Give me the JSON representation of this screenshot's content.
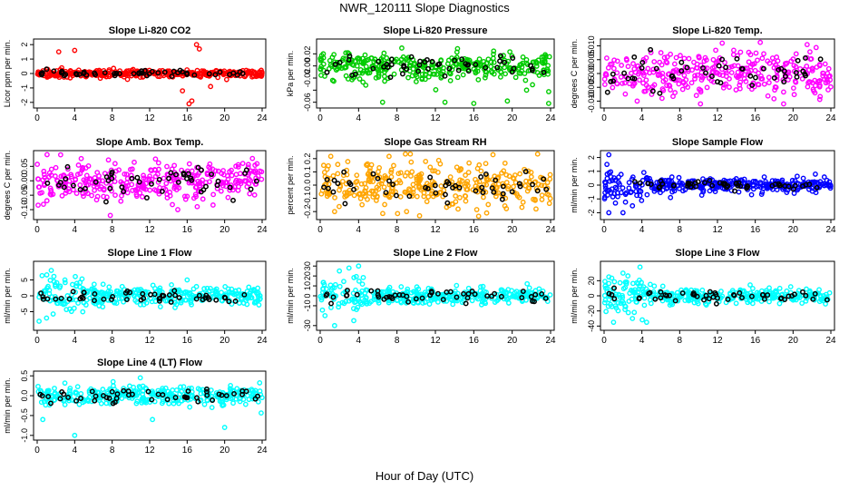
{
  "page": {
    "title": "NWR_120111  Slope Diagnostics",
    "xlabel": "Hour of Day (UTC)"
  },
  "chart_data": [
    {
      "type": "scatter",
      "title": "Slope Li-820 CO2",
      "ylabel": "Licor ppm per min.",
      "xlim": [
        0,
        24
      ],
      "ylim": [
        -2.2,
        2.2
      ],
      "yticks": [
        -2,
        -1,
        0,
        1,
        2
      ],
      "yticklabels": [
        "-2",
        "-1",
        "0",
        "1",
        "2"
      ],
      "xticks": [
        0,
        4,
        8,
        12,
        16,
        20,
        24
      ],
      "color": "#ff0000",
      "spread": 0.12,
      "outliers": [
        [
          2.3,
          1.5
        ],
        [
          4.0,
          1.6
        ],
        [
          16.5,
          -1.9
        ],
        [
          17.0,
          2.0
        ],
        [
          17.3,
          1.7
        ],
        [
          15.5,
          -1.2
        ],
        [
          16.2,
          -2.1
        ],
        [
          18.5,
          -0.9
        ]
      ],
      "bias_points": [
        [
          1.0,
          0.3
        ],
        [
          5.0,
          0.1
        ],
        [
          11.5,
          0.2
        ],
        [
          19.5,
          0.1
        ]
      ]
    },
    {
      "type": "scatter",
      "title": "Slope Li-820 Pressure",
      "ylabel": "kPa per min.",
      "xlim": [
        0,
        24
      ],
      "ylim": [
        -0.065,
        0.04
      ],
      "yticks": [
        -0.06,
        -0.04,
        -0.02,
        0.0,
        0.02
      ],
      "yticklabels": [
        "-0.06",
        "",
        "-0.02",
        "0.00",
        "0.02"
      ],
      "xticks": [
        0,
        4,
        8,
        12,
        16,
        20,
        24
      ],
      "color": "#00cc00",
      "spread": 0.012,
      "outliers": [
        [
          6.5,
          -0.06
        ],
        [
          13.0,
          -0.06
        ],
        [
          16.0,
          -0.062
        ],
        [
          23.8,
          -0.062
        ],
        [
          19.5,
          -0.058
        ],
        [
          21.5,
          -0.04
        ]
      ],
      "bias_points": [
        [
          3.0,
          0.01
        ],
        [
          9.0,
          -0.005
        ],
        [
          20.0,
          -0.01
        ]
      ]
    },
    {
      "type": "scatter",
      "title": "Slope Li-820 Temp.",
      "ylabel": "degrees C per min.",
      "xlim": [
        0,
        24
      ],
      "ylim": [
        -0.0115,
        0.0115
      ],
      "yticks": [
        -0.01,
        -0.005,
        0.0,
        0.005,
        0.01
      ],
      "yticklabels": [
        "-0.010",
        "-0.005",
        "0.000",
        "0.005",
        "0.010"
      ],
      "xticks": [
        0,
        4,
        8,
        12,
        16,
        20,
        24
      ],
      "color": "#ff00ff",
      "spread": 0.004,
      "outliers": [
        [
          12.5,
          0.011
        ],
        [
          10.2,
          -0.011
        ],
        [
          19.0,
          -0.011
        ],
        [
          3.5,
          -0.01
        ]
      ],
      "bias_points": [
        [
          4.0,
          0.002
        ],
        [
          12.0,
          -0.003
        ]
      ]
    },
    {
      "type": "scatter",
      "title": "Slope Amb. Box Temp.",
      "ylabel": "degrees C per min.",
      "xlim": [
        0,
        24
      ],
      "ylim": [
        -0.125,
        0.095
      ],
      "yticks": [
        -0.1,
        -0.05,
        0.0,
        0.05
      ],
      "yticklabels": [
        "-0.10",
        "-0.05",
        "0.00",
        "0.05"
      ],
      "xticks": [
        0,
        4,
        8,
        12,
        16,
        20,
        24
      ],
      "color": "#ff00ff",
      "spread": 0.035,
      "outliers": [
        [
          2.5,
          0.09
        ],
        [
          7.8,
          -0.12
        ],
        [
          15.0,
          -0.1
        ]
      ],
      "bias_points": [
        [
          8.0,
          0.03
        ],
        [
          18.0,
          -0.02
        ]
      ]
    },
    {
      "type": "scatter",
      "title": "Slope Gas Stream RH",
      "ylabel": "percent per min.",
      "xlim": [
        0,
        24
      ],
      "ylim": [
        -0.24,
        0.24
      ],
      "yticks": [
        -0.2,
        -0.1,
        0.0,
        0.1,
        0.2
      ],
      "yticklabels": [
        "-0.2",
        "-0.1",
        "0.0",
        "0.1",
        "0.2"
      ],
      "xticks": [
        0,
        4,
        8,
        12,
        16,
        20,
        24
      ],
      "color": "#ffa500",
      "spread": 0.08,
      "outliers": [
        [
          18.0,
          0.23
        ],
        [
          1.5,
          -0.2
        ],
        [
          9.0,
          -0.2
        ]
      ],
      "bias_points": [
        [
          6.0,
          0.05
        ],
        [
          20.0,
          -0.05
        ]
      ]
    },
    {
      "type": "scatter",
      "title": "Slope Sample Flow",
      "ylabel": "ml/min per min.",
      "xlim": [
        0,
        24
      ],
      "ylim": [
        -2.3,
        2.3
      ],
      "yticks": [
        -2,
        -1,
        0,
        1,
        2
      ],
      "yticklabels": [
        "-2",
        "-1",
        "0",
        "1",
        "2"
      ],
      "xticks": [
        0,
        4,
        8,
        12,
        16,
        20,
        24
      ],
      "color": "#0000ff",
      "spread": 0.25,
      "outliers": [
        [
          0.5,
          2.2
        ],
        [
          0.5,
          -2.0
        ],
        [
          2.0,
          -2.0
        ],
        [
          3.0,
          -1.5
        ],
        [
          1.2,
          -1.3
        ],
        [
          0.3,
          1.5
        ]
      ],
      "bias_points": [
        [
          6.0,
          0.3
        ],
        [
          14.0,
          0.1
        ]
      ]
    },
    {
      "type": "scatter",
      "title": "Slope Line 1 Flow",
      "ylabel": "ml/min per min.",
      "xlim": [
        0,
        24
      ],
      "ylim": [
        -10,
        10
      ],
      "yticks": [
        -5,
        0,
        5
      ],
      "yticklabels": [
        "-5",
        "0",
        "5"
      ],
      "xticks": [
        0,
        4,
        8,
        12,
        16,
        20,
        24
      ],
      "color": "#00ffff",
      "spread": 1.5,
      "outliers": [
        [
          1.5,
          8.0
        ],
        [
          0.2,
          -8.0
        ],
        [
          1.0,
          -7.0
        ],
        [
          16.0,
          5.0
        ]
      ],
      "bias_points": [
        [
          5.0,
          1.0
        ],
        [
          20.0,
          -0.5
        ]
      ]
    },
    {
      "type": "scatter",
      "title": "Slope Line 2 Flow",
      "ylabel": "ml/min per min.",
      "xlim": [
        0,
        24
      ],
      "ylim": [
        -32,
        32
      ],
      "yticks": [
        -30,
        -10,
        0,
        10,
        20,
        30
      ],
      "yticklabels": [
        "-30",
        "-10",
        "0",
        "10",
        "20",
        "30"
      ],
      "xticks": [
        0,
        4,
        8,
        12,
        16,
        20,
        24
      ],
      "color": "#00ffff",
      "spread": 4.0,
      "outliers": [
        [
          1.5,
          -30.0
        ],
        [
          3.0,
          28.0
        ],
        [
          4.0,
          30.0
        ],
        [
          2.0,
          25.0
        ],
        [
          0.5,
          -20.0
        ],
        [
          3.5,
          -25.0
        ]
      ],
      "bias_points": [
        [
          6.0,
          5.0
        ],
        [
          10.0,
          -3.0
        ]
      ]
    },
    {
      "type": "scatter",
      "title": "Slope Line 3 Flow",
      "ylabel": "ml/min per min.",
      "xlim": [
        0,
        24
      ],
      "ylim": [
        -42,
        42
      ],
      "yticks": [
        -40,
        -20,
        0,
        20
      ],
      "yticklabels": [
        "-40",
        "-20",
        "0",
        "20"
      ],
      "xticks": [
        0,
        4,
        8,
        12,
        16,
        20,
        24
      ],
      "color": "#00ffff",
      "spread": 5.0,
      "outliers": [
        [
          1.0,
          -35.0
        ],
        [
          3.8,
          38.0
        ],
        [
          2.0,
          30.0
        ],
        [
          4.5,
          -35.0
        ],
        [
          0.5,
          25.0
        ],
        [
          3.0,
          -30.0
        ]
      ],
      "bias_points": [
        [
          6.0,
          5.0
        ],
        [
          12.0,
          -3.0
        ]
      ]
    },
    {
      "type": "scatter",
      "title": "Slope Line 4 (LT) Flow",
      "ylabel": "ml/min per min.",
      "xlim": [
        0,
        24
      ],
      "ylim": [
        -1.05,
        0.55
      ],
      "yticks": [
        -1.0,
        -0.5,
        0.0,
        0.5
      ],
      "yticklabels": [
        "-1.0",
        "-0.5",
        "0.0",
        "0.5"
      ],
      "xticks": [
        0,
        4,
        8,
        12,
        16,
        20,
        24
      ],
      "color": "#00ffff",
      "spread": 0.12,
      "outliers": [
        [
          4.0,
          -1.0
        ],
        [
          20.0,
          -0.8
        ],
        [
          11.0,
          0.45
        ],
        [
          0.6,
          -0.6
        ],
        [
          12.3,
          -0.6
        ]
      ],
      "bias_points": [
        [
          8.0,
          0.1
        ],
        [
          16.0,
          -0.05
        ]
      ]
    }
  ]
}
